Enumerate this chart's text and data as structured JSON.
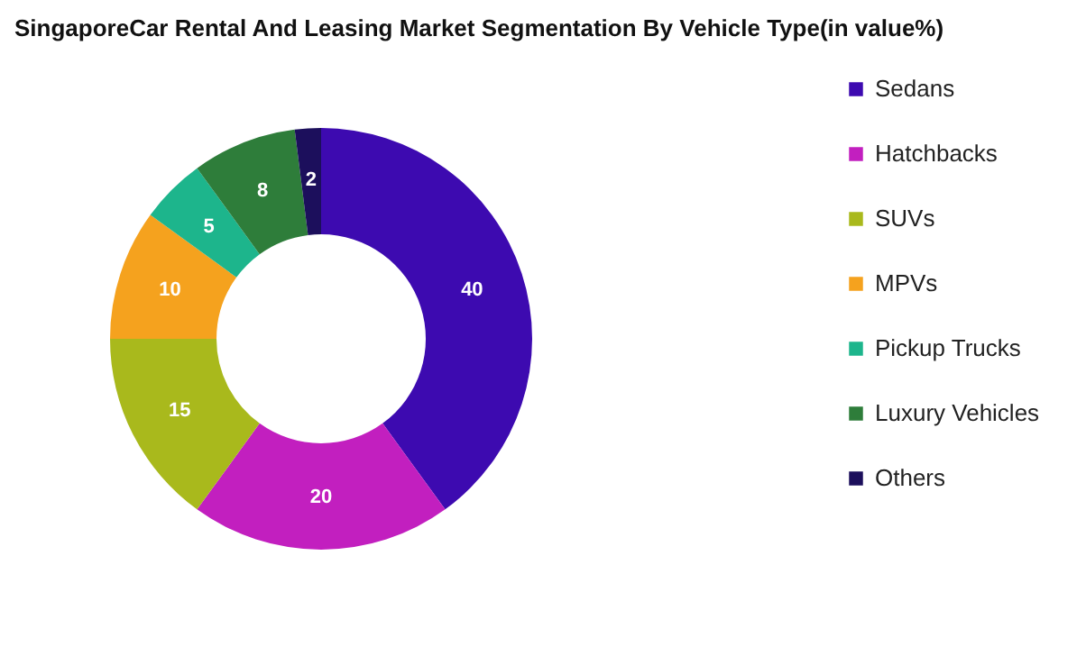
{
  "chart_data": {
    "type": "donut",
    "title": "SingaporeCar Rental And Leasing Market Segmentation By Vehicle Type(in value%)",
    "categories": [
      "Sedans",
      "Hatchbacks",
      "SUVs",
      "MPVs",
      "Pickup Trucks",
      "Luxury Vehicles",
      "Others"
    ],
    "values": [
      40,
      20,
      15,
      10,
      5,
      8,
      2
    ],
    "colors": [
      "#3d0ab0",
      "#c21fbf",
      "#a9b91c",
      "#f5a21e",
      "#1db58c",
      "#2e7d3a",
      "#1c0f5c"
    ],
    "data_labels": true,
    "legend": "right"
  }
}
